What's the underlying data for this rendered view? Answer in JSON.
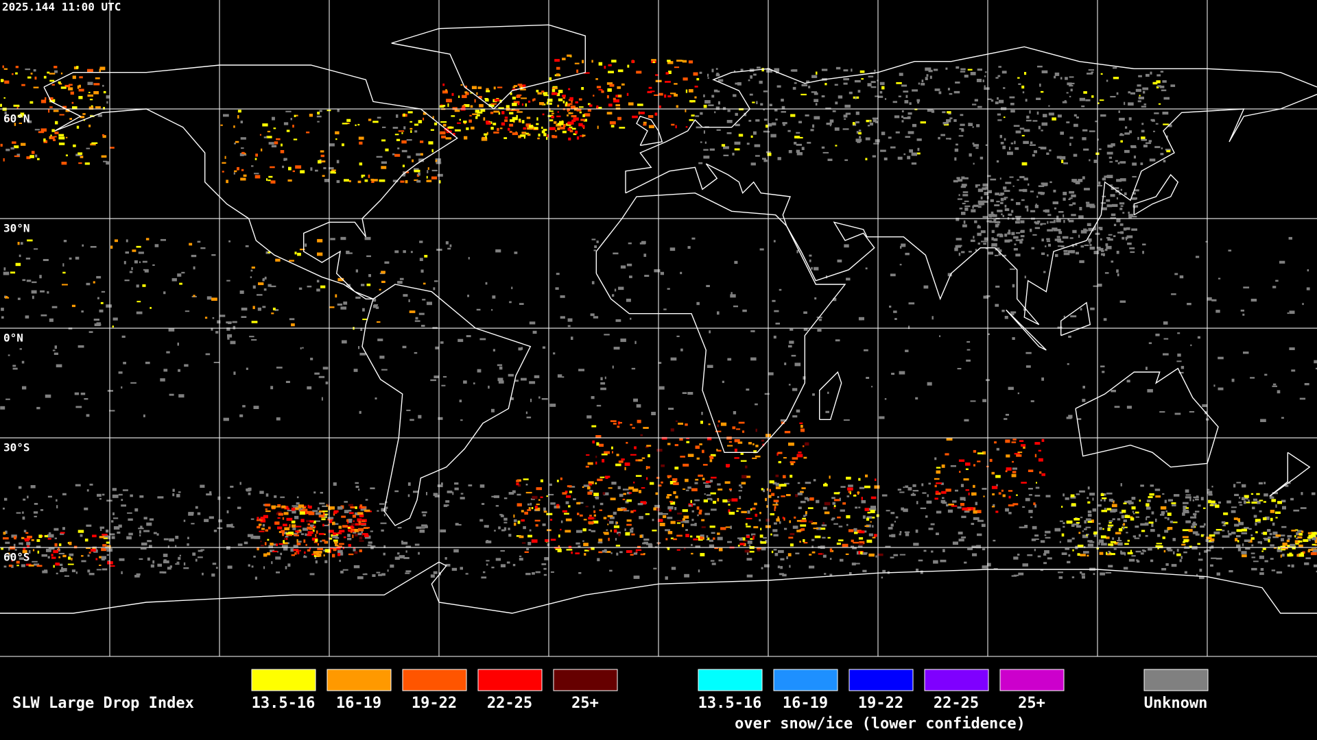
{
  "timestamp": "2025.144 11:00 UTC",
  "lat_labels": [
    "60°N",
    "30°N",
    "0°N",
    "30°S",
    "60°S"
  ],
  "legend": {
    "title": "SLW Large Drop Index",
    "groups": [
      {
        "items": [
          {
            "label": "13.5-16",
            "color": "#ffff00"
          },
          {
            "label": "16-19",
            "color": "#ff9900"
          },
          {
            "label": "19-22",
            "color": "#ff5500"
          },
          {
            "label": "22-25",
            "color": "#ff0000"
          },
          {
            "label": "25+",
            "color": "#660000"
          }
        ]
      },
      {
        "items": [
          {
            "label": "13.5-16",
            "color": "#00ffff"
          },
          {
            "label": "16-19",
            "color": "#1e90ff"
          },
          {
            "label": "19-22",
            "color": "#0000ff"
          },
          {
            "label": "22-25",
            "color": "#7f00ff"
          },
          {
            "label": "25+",
            "color": "#cc00cc"
          }
        ],
        "note": "over snow/ice (lower confidence)"
      }
    ],
    "unknown": {
      "label": "Unknown",
      "color": "#808080"
    }
  }
}
